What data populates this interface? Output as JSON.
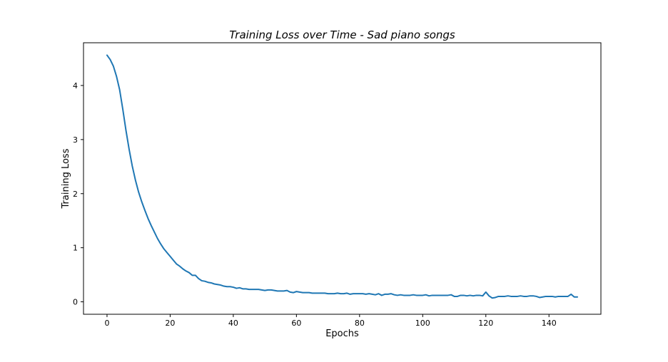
{
  "chart_data": {
    "type": "line",
    "title": "Training Loss over Time - Sad piano songs",
    "xlabel": "Epochs",
    "ylabel": "Training Loss",
    "xlim": [
      -7.45,
      156.45
    ],
    "ylim": [
      -0.23,
      4.79
    ],
    "grid": false,
    "x_ticks": [
      0,
      20,
      40,
      60,
      80,
      100,
      120,
      140
    ],
    "y_ticks": [
      0,
      1,
      2,
      3,
      4
    ],
    "series": [
      {
        "color": "#1f77b4",
        "y": [
          4.56,
          4.48,
          4.36,
          4.17,
          3.92,
          3.56,
          3.17,
          2.82,
          2.51,
          2.25,
          2.03,
          1.85,
          1.69,
          1.54,
          1.41,
          1.29,
          1.17,
          1.07,
          0.98,
          0.91,
          0.84,
          0.77,
          0.7,
          0.66,
          0.61,
          0.57,
          0.54,
          0.49,
          0.49,
          0.43,
          0.39,
          0.38,
          0.36,
          0.35,
          0.33,
          0.32,
          0.31,
          0.29,
          0.28,
          0.28,
          0.27,
          0.25,
          0.26,
          0.24,
          0.24,
          0.23,
          0.23,
          0.23,
          0.23,
          0.22,
          0.21,
          0.22,
          0.22,
          0.21,
          0.2,
          0.2,
          0.2,
          0.21,
          0.18,
          0.17,
          0.19,
          0.18,
          0.17,
          0.17,
          0.17,
          0.16,
          0.16,
          0.16,
          0.16,
          0.16,
          0.15,
          0.15,
          0.15,
          0.16,
          0.15,
          0.15,
          0.16,
          0.14,
          0.15,
          0.15,
          0.15,
          0.15,
          0.14,
          0.15,
          0.14,
          0.13,
          0.15,
          0.12,
          0.14,
          0.14,
          0.15,
          0.13,
          0.12,
          0.13,
          0.12,
          0.12,
          0.12,
          0.13,
          0.12,
          0.12,
          0.12,
          0.13,
          0.11,
          0.12,
          0.12,
          0.12,
          0.12,
          0.12,
          0.12,
          0.13,
          0.1,
          0.1,
          0.12,
          0.12,
          0.11,
          0.12,
          0.11,
          0.12,
          0.12,
          0.11,
          0.18,
          0.11,
          0.07,
          0.08,
          0.1,
          0.1,
          0.1,
          0.11,
          0.1,
          0.1,
          0.1,
          0.11,
          0.1,
          0.1,
          0.11,
          0.11,
          0.1,
          0.08,
          0.09,
          0.1,
          0.1,
          0.1,
          0.09,
          0.1,
          0.1,
          0.1,
          0.1,
          0.14,
          0.09,
          0.09
        ]
      }
    ]
  }
}
